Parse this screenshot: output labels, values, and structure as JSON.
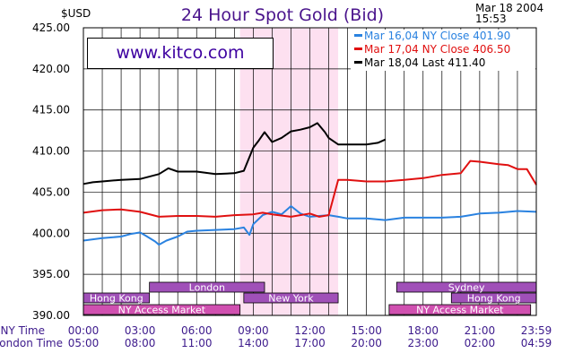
{
  "page": {
    "title": "24 Hour Spot Gold (Bid)",
    "unit": "$USD",
    "date": "Mar 18 2004",
    "time": "15:53",
    "brand": "www.kitco.com"
  },
  "colors": {
    "title": "#4a148c",
    "axis_labels": "#3d1a8c",
    "grid": "#000000",
    "session_highlight": "#fde0f0",
    "market_purple": "#a050b8",
    "market_magenta": "#d050b0",
    "brand": "#3d00a0"
  },
  "chart_data": {
    "type": "line",
    "title": "24 Hour Spot Gold (Bid)",
    "ylabel": "$USD",
    "ylim": [
      390,
      425
    ],
    "xlim": [
      0,
      24
    ],
    "y_ticks": [
      "425.00",
      "420.00",
      "415.00",
      "410.00",
      "405.00",
      "400.00",
      "395.00",
      "390.00"
    ],
    "y_tick_values": [
      425,
      420,
      415,
      410,
      405,
      400,
      395,
      390
    ],
    "x_tick_values": [
      0,
      3,
      6,
      9,
      12,
      15,
      18,
      21,
      24
    ],
    "x_row_labels": [
      "NY Time",
      "London Time"
    ],
    "x_ticks_ny": [
      "00:00",
      "03:00",
      "06:00",
      "09:00",
      "12:00",
      "15:00",
      "18:00",
      "21:00",
      "23:59"
    ],
    "x_ticks_london": [
      "05:00",
      "08:00",
      "11:00",
      "14:00",
      "17:00",
      "20:00",
      "23:00",
      "02:00",
      "04:59"
    ],
    "grid": true,
    "legend_position": "top-right",
    "highlight": {
      "x_start": 8.3,
      "x_end": 13.5
    },
    "series": [
      {
        "name": "Mar 16,04 NY Close 401.90",
        "color": "#2a82e0",
        "x": [
          0,
          1,
          2,
          2.5,
          3,
          3.3,
          3.8,
          4,
          4.4,
          5,
          5.5,
          6,
          7,
          8,
          8.5,
          8.8,
          9,
          9.5,
          10,
          10.5,
          11,
          11.5,
          12,
          12.5,
          13,
          13.5,
          14,
          15,
          16,
          17,
          18,
          19,
          20,
          20.5,
          21,
          22,
          23,
          24
        ],
        "y": [
          399.1,
          399.4,
          399.6,
          399.9,
          400.1,
          399.7,
          399.0,
          398.6,
          399.1,
          399.6,
          400.2,
          400.3,
          400.4,
          400.5,
          400.7,
          399.8,
          401.1,
          402.2,
          402.6,
          402.3,
          403.3,
          402.4,
          402.0,
          402.1,
          402.2,
          402.0,
          401.8,
          401.8,
          401.6,
          401.9,
          401.9,
          401.9,
          402.0,
          402.2,
          402.4,
          402.5,
          402.7,
          402.6
        ]
      },
      {
        "name": "Mar 17,04 NY Close 406.50",
        "color": "#e01010",
        "x": [
          0,
          1,
          2,
          3,
          4,
          5,
          6,
          7,
          8,
          9,
          9.5,
          10,
          11,
          12,
          12.5,
          13,
          13.5,
          14,
          15,
          16,
          17,
          18,
          19,
          20,
          20.5,
          21,
          22,
          22.5,
          23,
          23.5,
          24
        ],
        "y": [
          402.5,
          402.8,
          402.9,
          402.6,
          402.0,
          402.1,
          402.1,
          402.0,
          402.2,
          402.3,
          402.5,
          402.3,
          402.0,
          402.4,
          402.0,
          402.2,
          406.5,
          406.5,
          406.3,
          406.3,
          406.5,
          406.7,
          407.1,
          407.3,
          408.8,
          408.7,
          408.4,
          408.3,
          407.8,
          407.8,
          405.9
        ]
      },
      {
        "name": "Mar 18,04 Last 411.40",
        "color": "#000000",
        "x": [
          0,
          0.5,
          1,
          2,
          3,
          4,
          4.5,
          5,
          6,
          7,
          8,
          8.5,
          9,
          9.3,
          9.6,
          10,
          10.5,
          11,
          11.5,
          12,
          12.4,
          12.8,
          13,
          13.5,
          14,
          15,
          15.6,
          16
        ],
        "y": [
          406.0,
          406.2,
          406.3,
          406.5,
          406.6,
          407.2,
          407.9,
          407.5,
          407.5,
          407.2,
          407.3,
          407.6,
          410.4,
          411.3,
          412.3,
          411.1,
          411.6,
          412.4,
          412.6,
          412.9,
          413.4,
          412.3,
          411.6,
          410.8,
          410.8,
          410.8,
          411.0,
          411.4
        ]
      }
    ],
    "markets": [
      {
        "name": "London",
        "start": 3.5,
        "end": 9.6,
        "row": 0,
        "color": "#a050b8"
      },
      {
        "name": "Sydney",
        "start": 16.6,
        "end": 24,
        "row": 0,
        "color": "#a050b8"
      },
      {
        "name": "Hong Kong",
        "start": 0,
        "end": 3.5,
        "row": 1,
        "color": "#a050b8"
      },
      {
        "name": "New York",
        "start": 8.5,
        "end": 13.5,
        "row": 1,
        "color": "#a050b8"
      },
      {
        "name": "Hong Kong",
        "start": 19.5,
        "end": 24,
        "row": 1,
        "color": "#a050b8"
      },
      {
        "name": "NY Access Market",
        "start": 0,
        "end": 8.3,
        "row": 2,
        "color": "#d050b0"
      },
      {
        "name": "NY Access Market",
        "start": 16.2,
        "end": 23.7,
        "row": 2,
        "color": "#d050b0"
      }
    ]
  }
}
